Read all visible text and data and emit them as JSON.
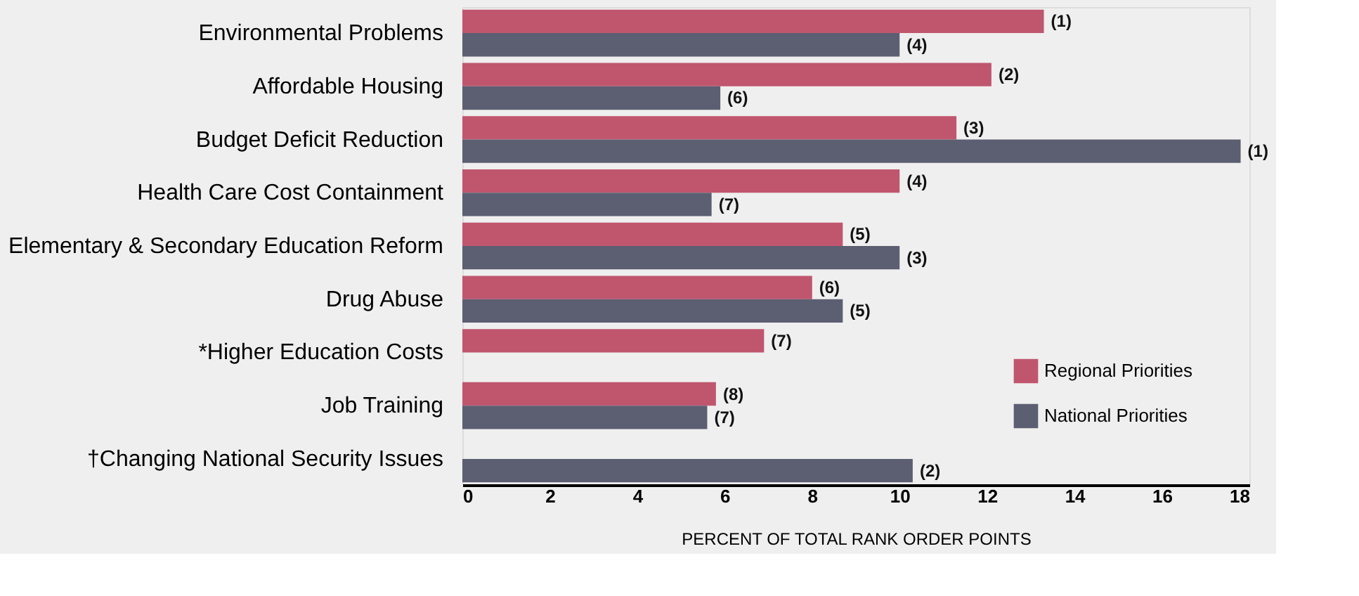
{
  "chart_data": {
    "type": "bar",
    "orientation": "horizontal",
    "xlabel": "PERCENT OF TOTAL RANK ORDER POINTS",
    "categories": [
      "Environmental Problems",
      "Affordable Housing",
      "Budget Deficit Reduction",
      "Health Care Cost Containment",
      "Elementary & Secondary Education Reform",
      "Drug Abuse",
      "*Higher Education Costs",
      "Job Training",
      "†Changing National Security Issues"
    ],
    "series": [
      {
        "name": "Regional Priorities",
        "color": "#c0566e",
        "values": [
          13.3,
          12.1,
          11.3,
          10.0,
          8.7,
          8.0,
          6.9,
          5.8,
          null
        ]
      },
      {
        "name": "National Priorities",
        "color": "#5c5e72",
        "values": [
          10.0,
          5.9,
          17.8,
          5.7,
          10.0,
          8.7,
          null,
          5.6,
          10.3
        ]
      }
    ],
    "annotations": [
      {
        "text": "(1)",
        "x": 13.3,
        "y": "Environmental Problems"
      },
      {
        "text": "(4)",
        "x": 10.0,
        "y": "Environmental Problems"
      },
      {
        "text": "(2)",
        "x": 12.1,
        "y": "Affordable Housing"
      },
      {
        "text": "(6)",
        "x": 5.9,
        "y": "Affordable Housing"
      },
      {
        "text": "(3)",
        "x": 11.3,
        "y": "Budget Deficit Reduction"
      },
      {
        "text": "(1)",
        "x": 17.8,
        "y": "Budget Deficit Reduction"
      },
      {
        "text": "(4)",
        "x": 10.0,
        "y": "Health Care Cost Containment"
      },
      {
        "text": "(7)",
        "x": 5.7,
        "y": "Health Care Cost Containment"
      },
      {
        "text": "(5)",
        "x": 8.7,
        "y": "Elementary & Secondary Education Reform"
      },
      {
        "text": "(3)",
        "x": 10.0,
        "y": "Elementary & Secondary Education Reform"
      },
      {
        "text": "(6)",
        "x": 8.0,
        "y": "Drug Abuse"
      },
      {
        "text": "(5)",
        "x": 8.7,
        "y": "Drug Abuse"
      },
      {
        "text": "(7)",
        "x": 6.9,
        "y": "*Higher Education Costs"
      },
      {
        "text": "(8)",
        "x": 5.8,
        "y": "Job Training"
      },
      {
        "text": "(7)",
        "x": 5.6,
        "y": "Job Training"
      },
      {
        "text": "(2)",
        "x": 10.3,
        "y": "†Changing National Security Issues"
      }
    ],
    "xlim": [
      0,
      18
    ],
    "xticks": [
      0,
      2,
      4,
      6,
      8,
      10,
      12,
      14,
      16,
      18
    ],
    "grid": false,
    "legend": "bottom right"
  }
}
